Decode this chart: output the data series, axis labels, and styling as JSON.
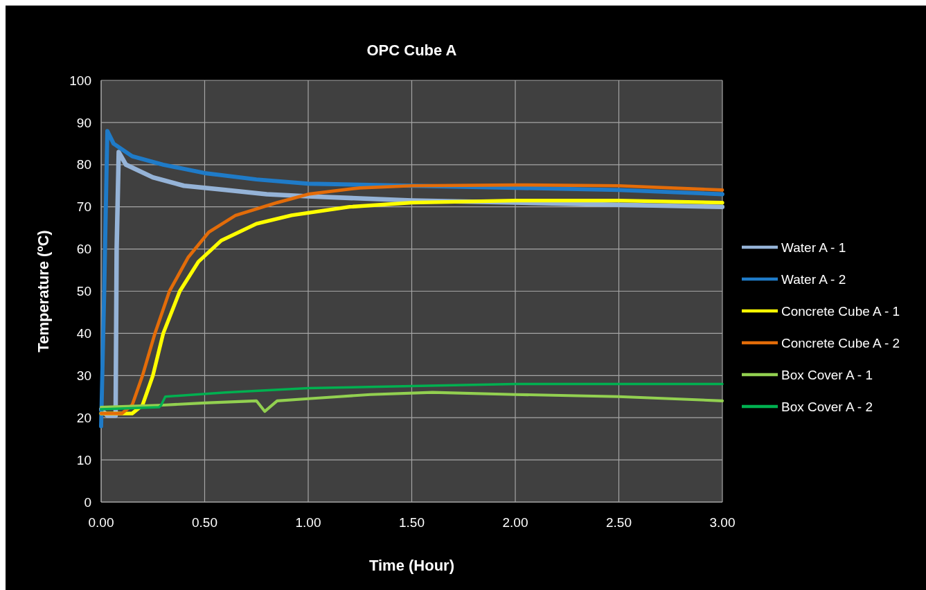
{
  "chart_data": {
    "type": "line",
    "title": "OPC Cube A",
    "xlabel": "Time (Hour)",
    "ylabel": "Temperature (ºC)",
    "xlim": [
      0,
      3
    ],
    "xticks": [
      {
        "value": 0,
        "label": "0.00"
      },
      {
        "value": 0.5,
        "label": "0.50"
      },
      {
        "value": 1,
        "label": "1.00"
      },
      {
        "value": 1.5,
        "label": "1.50"
      },
      {
        "value": 2,
        "label": "2.00"
      },
      {
        "value": 2.5,
        "label": "2.50"
      },
      {
        "value": 3,
        "label": "3.00"
      }
    ],
    "ylim": [
      0,
      100
    ],
    "yticks": [
      0,
      10,
      20,
      30,
      40,
      50,
      60,
      70,
      80,
      90,
      100
    ],
    "grid": true,
    "legend": "right",
    "marker": "none",
    "line_style": "solid",
    "series": [
      {
        "name": "Water A - 1",
        "color": "#95b3d7",
        "x": [
          0,
          0.03,
          0.07,
          0.075,
          0.085,
          0.12,
          0.25,
          0.4,
          0.6,
          0.8,
          1.0,
          1.5,
          2.0,
          2.5,
          3.0
        ],
        "values": [
          22,
          20.5,
          20.5,
          60,
          83,
          80,
          77,
          75,
          74,
          73,
          72.5,
          71.5,
          71,
          70.5,
          70
        ]
      },
      {
        "name": "Water A - 2",
        "color": "#1f7bc8",
        "x": [
          0,
          0.015,
          0.03,
          0.06,
          0.15,
          0.3,
          0.5,
          0.75,
          1.0,
          1.5,
          2.0,
          2.5,
          3.0
        ],
        "values": [
          18,
          50,
          88,
          85,
          82,
          80,
          78,
          76.5,
          75.5,
          75,
          74.5,
          74,
          73
        ]
      },
      {
        "name": "Concrete Cube A - 1",
        "color": "#ffff00",
        "x": [
          0,
          0.15,
          0.2,
          0.25,
          0.3,
          0.38,
          0.47,
          0.58,
          0.75,
          0.92,
          1.2,
          1.5,
          2.0,
          2.5,
          3.0
        ],
        "values": [
          21,
          21,
          23,
          30,
          40,
          50,
          57,
          62,
          66,
          68,
          70,
          71,
          71.5,
          71.5,
          71
        ]
      },
      {
        "name": "Concrete Cube A - 2",
        "color": "#e36c09",
        "x": [
          0,
          0.1,
          0.15,
          0.2,
          0.26,
          0.33,
          0.42,
          0.52,
          0.65,
          0.85,
          1.0,
          1.25,
          1.5,
          2.0,
          2.5,
          3.0
        ],
        "values": [
          21,
          21,
          23,
          30,
          40,
          50,
          58,
          64,
          68,
          71,
          73,
          74.5,
          75,
          75.2,
          75,
          74
        ]
      },
      {
        "name": "Box Cover A - 1",
        "color": "#92d050",
        "x": [
          0,
          0.3,
          0.5,
          0.75,
          0.79,
          0.85,
          1.0,
          1.15,
          1.3,
          1.6,
          2.0,
          2.5,
          3.0
        ],
        "values": [
          22.5,
          23,
          23.5,
          24,
          21.5,
          24,
          24.5,
          25,
          25.5,
          26,
          25.5,
          25,
          24
        ]
      },
      {
        "name": "Box Cover A - 2",
        "color": "#00b050",
        "x": [
          0,
          0.28,
          0.29,
          0.31,
          0.6,
          1.0,
          1.5,
          2.0,
          3.0
        ],
        "values": [
          22,
          22.5,
          23,
          25,
          26,
          27,
          27.5,
          28,
          28
        ]
      }
    ]
  }
}
